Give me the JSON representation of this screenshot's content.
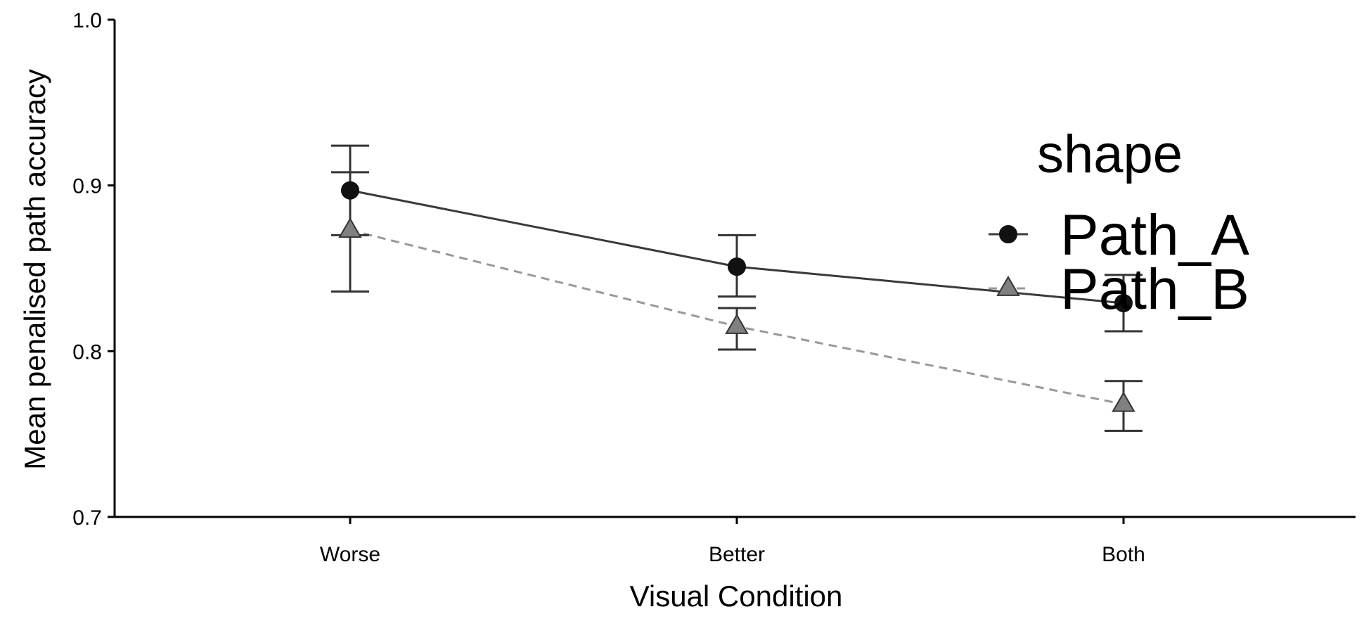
{
  "chart_data": {
    "type": "line",
    "title": "",
    "xlabel": "Visual Condition",
    "ylabel": "Mean penalised path accuracy",
    "categories": [
      "Worse",
      "Better",
      "Both"
    ],
    "ylim": [
      0.7,
      1.0
    ],
    "yticks": [
      0.7,
      0.8,
      0.9,
      1.0
    ],
    "ytick_labels": [
      "0.7",
      "0.8",
      "0.9",
      "1.0"
    ],
    "grid": false,
    "legend": {
      "title": "shape",
      "position": "right"
    },
    "series": [
      {
        "name": "Path_A",
        "marker": "circle",
        "line": "solid",
        "color": "#3a3a3a",
        "values": [
          0.897,
          0.851,
          0.829
        ],
        "err_low": [
          0.87,
          0.833,
          0.812
        ],
        "err_high": [
          0.924,
          0.87,
          0.846
        ]
      },
      {
        "name": "Path_B",
        "marker": "triangle",
        "line": "dashed",
        "color": "#999999",
        "fill": "#808080",
        "values": [
          0.873,
          0.815,
          0.768
        ],
        "err_low": [
          0.836,
          0.801,
          0.752
        ],
        "err_high": [
          0.908,
          0.826,
          0.782
        ]
      }
    ]
  }
}
